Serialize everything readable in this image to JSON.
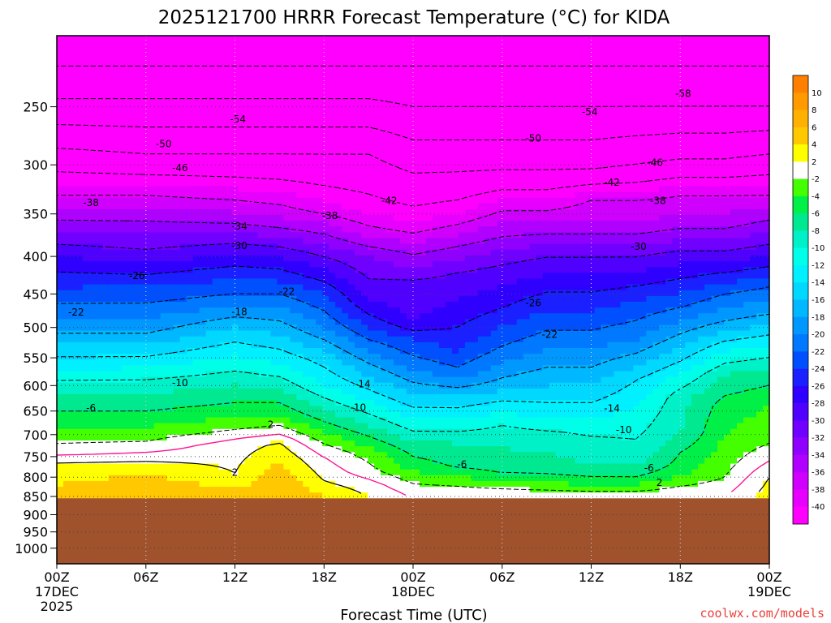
{
  "chart_data": {
    "type": "heatmap",
    "title": "2025121700 HRRR Forecast Temperature (°C) for KIDA",
    "xlabel": "Forecast Time (UTC)",
    "ylabel": "",
    "y_axis": {
      "scale": "log",
      "reversed": true,
      "range_hPa": [
        1050,
        200
      ],
      "ticks": [
        250,
        300,
        350,
        400,
        450,
        500,
        550,
        600,
        650,
        700,
        750,
        800,
        850,
        900,
        950,
        1000
      ]
    },
    "x_axis": {
      "range_hours": [
        0,
        48
      ],
      "ticks": [
        {
          "hour": 0,
          "lines": [
            "00Z",
            "17DEC",
            "2025"
          ]
        },
        {
          "hour": 6,
          "lines": [
            "06Z"
          ]
        },
        {
          "hour": 12,
          "lines": [
            "12Z"
          ]
        },
        {
          "hour": 18,
          "lines": [
            "18Z"
          ]
        },
        {
          "hour": 24,
          "lines": [
            "00Z",
            "18DEC"
          ]
        },
        {
          "hour": 30,
          "lines": [
            "06Z"
          ]
        },
        {
          "hour": 36,
          "lines": [
            "12Z"
          ]
        },
        {
          "hour": 42,
          "lines": [
            "18Z"
          ]
        },
        {
          "hour": 48,
          "lines": [
            "00Z",
            "19DEC"
          ]
        }
      ]
    },
    "grid": true,
    "surface_pressure_hPa": 855,
    "colorbar": {
      "ticks": [
        10,
        8,
        6,
        4,
        2,
        -2,
        -4,
        -6,
        -8,
        -10,
        -12,
        -14,
        -16,
        -18,
        -20,
        -22,
        -24,
        -26,
        -28,
        -30,
        -32,
        -34,
        -36,
        -38,
        -40
      ],
      "bins": [
        {
          "lo": 10,
          "hi": 12,
          "color": "#ff8000"
        },
        {
          "lo": 8,
          "hi": 10,
          "color": "#ff9a00"
        },
        {
          "lo": 6,
          "hi": 8,
          "color": "#ffb000"
        },
        {
          "lo": 4,
          "hi": 6,
          "color": "#ffc800"
        },
        {
          "lo": 2,
          "hi": 4,
          "color": "#ffff00"
        },
        {
          "lo": -2,
          "hi": 2,
          "color": "#ffffff"
        },
        {
          "lo": -4,
          "hi": -2,
          "color": "#44ff00"
        },
        {
          "lo": -6,
          "hi": -4,
          "color": "#00f048"
        },
        {
          "lo": -8,
          "hi": -6,
          "color": "#00e890"
        },
        {
          "lo": -10,
          "hi": -8,
          "color": "#00f0c8"
        },
        {
          "lo": -12,
          "hi": -10,
          "color": "#00ffe8"
        },
        {
          "lo": -14,
          "hi": -12,
          "color": "#00f0ff"
        },
        {
          "lo": -16,
          "hi": -14,
          "color": "#00d8ff"
        },
        {
          "lo": -18,
          "hi": -16,
          "color": "#00b8ff"
        },
        {
          "lo": -20,
          "hi": -18,
          "color": "#0098ff"
        },
        {
          "lo": -22,
          "hi": -20,
          "color": "#0078ff"
        },
        {
          "lo": -24,
          "hi": -22,
          "color": "#0050ff"
        },
        {
          "lo": -26,
          "hi": -24,
          "color": "#1a20ff"
        },
        {
          "lo": -28,
          "hi": -26,
          "color": "#3000ff"
        },
        {
          "lo": -30,
          "hi": -28,
          "color": "#5000ff"
        },
        {
          "lo": -32,
          "hi": -30,
          "color": "#7000ff"
        },
        {
          "lo": -34,
          "hi": -32,
          "color": "#9000ff"
        },
        {
          "lo": -36,
          "hi": -34,
          "color": "#b000ff"
        },
        {
          "lo": -38,
          "hi": -36,
          "color": "#d000ff"
        },
        {
          "lo": -40,
          "hi": -38,
          "color": "#e800ff"
        },
        {
          "lo": -60,
          "hi": -40,
          "color": "#ff00ff"
        }
      ]
    },
    "surface_color": "#a0522d",
    "profile_times_hours": [
      0,
      6,
      12,
      15,
      18,
      21,
      24,
      27,
      30,
      33,
      36,
      39,
      42,
      45,
      48
    ],
    "profiles": [
      [
        [
          850,
          5
        ],
        [
          760,
          2
        ],
        [
          740,
          -1
        ],
        [
          700,
          -3
        ],
        [
          650,
          -6
        ],
        [
          590,
          -10
        ],
        [
          500,
          -19
        ],
        [
          430,
          -25
        ],
        [
          400,
          -28
        ],
        [
          350,
          -35
        ],
        [
          330,
          -38
        ],
        [
          290,
          -45
        ],
        [
          250,
          -53
        ],
        [
          220,
          -58
        ]
      ],
      [
        [
          850,
          6
        ],
        [
          790,
          4
        ],
        [
          760,
          2
        ],
        [
          730,
          -1
        ],
        [
          700,
          -3
        ],
        [
          650,
          -6
        ],
        [
          600,
          -9
        ],
        [
          500,
          -19
        ],
        [
          440,
          -24
        ],
        [
          400,
          -29
        ],
        [
          350,
          -35
        ],
        [
          330,
          -38
        ],
        [
          290,
          -46
        ],
        [
          250,
          -53
        ],
        [
          220,
          -58
        ]
      ],
      [
        [
          850,
          5
        ],
        [
          790,
          2
        ],
        [
          720,
          1
        ],
        [
          690,
          -2
        ],
        [
          650,
          -5
        ],
        [
          600,
          -8
        ],
        [
          500,
          -16
        ],
        [
          460,
          -21
        ],
        [
          420,
          -25
        ],
        [
          390,
          -29
        ],
        [
          355,
          -35
        ],
        [
          335,
          -38
        ],
        [
          290,
          -46
        ],
        [
          250,
          -53
        ],
        [
          220,
          -58
        ]
      ],
      [
        [
          850,
          6
        ],
        [
          790,
          5
        ],
        [
          715,
          2
        ],
        [
          700,
          0
        ],
        [
          660,
          -4
        ],
        [
          620,
          -7
        ],
        [
          560,
          -12
        ],
        [
          500,
          -17
        ],
        [
          450,
          -22
        ],
        [
          400,
          -28
        ],
        [
          360,
          -35
        ],
        [
          340,
          -38
        ],
        [
          290,
          -46
        ],
        [
          250,
          -53
        ],
        [
          220,
          -58
        ]
      ],
      [
        [
          850,
          4
        ],
        [
          810,
          2
        ],
        [
          750,
          0
        ],
        [
          720,
          -2
        ],
        [
          660,
          -7
        ],
        [
          600,
          -12
        ],
        [
          550,
          -15
        ],
        [
          500,
          -20
        ],
        [
          450,
          -24
        ],
        [
          400,
          -30
        ],
        [
          360,
          -36
        ],
        [
          345,
          -39
        ],
        [
          290,
          -46
        ],
        [
          250,
          -53
        ],
        [
          220,
          -58
        ]
      ],
      [
        [
          850,
          2
        ],
        [
          820,
          1
        ],
        [
          790,
          -1
        ],
        [
          740,
          -3
        ],
        [
          680,
          -8
        ],
        [
          620,
          -13
        ],
        [
          570,
          -17
        ],
        [
          500,
          -24
        ],
        [
          460,
          -28
        ],
        [
          400,
          -32
        ],
        [
          370,
          -37
        ],
        [
          350,
          -40
        ],
        [
          290,
          -46
        ],
        [
          250,
          -53
        ],
        [
          220,
          -58
        ]
      ],
      [
        [
          850,
          0
        ],
        [
          800,
          -3
        ],
        [
          770,
          -5
        ],
        [
          730,
          -7
        ],
        [
          680,
          -11
        ],
        [
          630,
          -15
        ],
        [
          560,
          -21
        ],
        [
          520,
          -24
        ],
        [
          490,
          -28
        ],
        [
          430,
          -30
        ],
        [
          390,
          -35
        ],
        [
          360,
          -40
        ],
        [
          300,
          -47
        ],
        [
          250,
          -54
        ],
        [
          220,
          -58
        ]
      ],
      [
        [
          850,
          0
        ],
        [
          810,
          -3
        ],
        [
          780,
          -6
        ],
        [
          720,
          -8
        ],
        [
          680,
          -11
        ],
        [
          620,
          -16
        ],
        [
          580,
          -21
        ],
        [
          540,
          -24
        ],
        [
          480,
          -27
        ],
        [
          420,
          -30
        ],
        [
          380,
          -35
        ],
        [
          350,
          -40
        ],
        [
          300,
          -47
        ],
        [
          250,
          -54
        ],
        [
          220,
          -58
        ]
      ],
      [
        [
          850,
          0
        ],
        [
          820,
          -3
        ],
        [
          790,
          -6
        ],
        [
          730,
          -8
        ],
        [
          680,
          -10
        ],
        [
          640,
          -13
        ],
        [
          600,
          -17
        ],
        [
          530,
          -22
        ],
        [
          470,
          -26
        ],
        [
          410,
          -30
        ],
        [
          360,
          -36
        ],
        [
          340,
          -39
        ],
        [
          300,
          -47
        ],
        [
          250,
          -54
        ],
        [
          220,
          -58
        ]
      ],
      [
        [
          850,
          0
        ],
        [
          825,
          -3
        ],
        [
          795,
          -6
        ],
        [
          740,
          -8
        ],
        [
          690,
          -10
        ],
        [
          650,
          -13
        ],
        [
          600,
          -16
        ],
        [
          520,
          -21
        ],
        [
          460,
          -25
        ],
        [
          400,
          -30
        ],
        [
          360,
          -36
        ],
        [
          340,
          -39
        ],
        [
          300,
          -47
        ],
        [
          250,
          -54
        ],
        [
          220,
          -58
        ]
      ],
      [
        [
          850,
          0
        ],
        [
          830,
          -3
        ],
        [
          800,
          -6
        ],
        [
          750,
          -9
        ],
        [
          700,
          -10
        ],
        [
          650,
          -13
        ],
        [
          600,
          -16
        ],
        [
          520,
          -21
        ],
        [
          460,
          -25
        ],
        [
          400,
          -30
        ],
        [
          360,
          -36
        ],
        [
          335,
          -38
        ],
        [
          300,
          -47
        ],
        [
          250,
          -54
        ],
        [
          220,
          -58
        ]
      ],
      [
        [
          850,
          0
        ],
        [
          830,
          -3
        ],
        [
          800,
          -6
        ],
        [
          760,
          -9
        ],
        [
          710,
          -10
        ],
        [
          640,
          -12
        ],
        [
          590,
          -14
        ],
        [
          520,
          -20
        ],
        [
          460,
          -24
        ],
        [
          400,
          -30
        ],
        [
          360,
          -36
        ],
        [
          335,
          -38
        ],
        [
          300,
          -46
        ],
        [
          250,
          -54
        ],
        [
          220,
          -58
        ]
      ],
      [
        [
          850,
          0
        ],
        [
          810,
          -3
        ],
        [
          780,
          -5
        ],
        [
          740,
          -6
        ],
        [
          700,
          -8
        ],
        [
          620,
          -9
        ],
        [
          580,
          -12
        ],
        [
          510,
          -18
        ],
        [
          460,
          -23
        ],
        [
          400,
          -29
        ],
        [
          360,
          -35
        ],
        [
          330,
          -38
        ],
        [
          295,
          -46
        ],
        [
          250,
          -54
        ],
        [
          220,
          -58
        ]
      ],
      [
        [
          850,
          0
        ],
        [
          800,
          -2
        ],
        [
          760,
          -3
        ],
        [
          700,
          -4
        ],
        [
          640,
          -5
        ],
        [
          580,
          -8
        ],
        [
          530,
          -13
        ],
        [
          490,
          -18
        ],
        [
          450,
          -22
        ],
        [
          400,
          -29
        ],
        [
          360,
          -35
        ],
        [
          330,
          -38
        ],
        [
          295,
          -46
        ],
        [
          250,
          -54
        ],
        [
          220,
          -58
        ]
      ],
      [
        [
          850,
          3
        ],
        [
          800,
          2
        ],
        [
          760,
          0
        ],
        [
          720,
          -2
        ],
        [
          690,
          -3
        ],
        [
          640,
          -4
        ],
        [
          580,
          -7
        ],
        [
          520,
          -13
        ],
        [
          480,
          -18
        ],
        [
          440,
          -22
        ],
        [
          400,
          -28
        ],
        [
          350,
          -35
        ],
        [
          330,
          -38
        ],
        [
          290,
          -46
        ],
        [
          250,
          -54
        ],
        [
          220,
          -58
        ]
      ]
    ],
    "contour_labels": [
      {
        "hour": 12.2,
        "p": 260,
        "text": "-54"
      },
      {
        "hour": 35.9,
        "p": 254,
        "text": "-54"
      },
      {
        "hour": 42.2,
        "p": 240,
        "text": "-58"
      },
      {
        "hour": 7.2,
        "p": 281,
        "text": "-50"
      },
      {
        "hour": 32.1,
        "p": 276,
        "text": "-50"
      },
      {
        "hour": 8.3,
        "p": 303,
        "text": "-46"
      },
      {
        "hour": 40.3,
        "p": 298,
        "text": "-46"
      },
      {
        "hour": 37.4,
        "p": 317,
        "text": "-42"
      },
      {
        "hour": 22.4,
        "p": 336,
        "text": "-42"
      },
      {
        "hour": 2.3,
        "p": 338,
        "text": "-38"
      },
      {
        "hour": 18.4,
        "p": 352,
        "text": "-38"
      },
      {
        "hour": 40.5,
        "p": 336,
        "text": "-38"
      },
      {
        "hour": 12.3,
        "p": 364,
        "text": "-34"
      },
      {
        "hour": 12.3,
        "p": 387,
        "text": "-30"
      },
      {
        "hour": 39.2,
        "p": 388,
        "text": "-30"
      },
      {
        "hour": 5.4,
        "p": 425,
        "text": "-26"
      },
      {
        "hour": 32.1,
        "p": 463,
        "text": "-26"
      },
      {
        "hour": 1.3,
        "p": 477,
        "text": "-22"
      },
      {
        "hour": 15.5,
        "p": 447,
        "text": "-22"
      },
      {
        "hour": 33.2,
        "p": 511,
        "text": "-22"
      },
      {
        "hour": 12.3,
        "p": 476,
        "text": "-18"
      },
      {
        "hour": 8.3,
        "p": 595,
        "text": "-10"
      },
      {
        "hour": 20.6,
        "p": 597,
        "text": "-14"
      },
      {
        "hour": 20.3,
        "p": 643,
        "text": "-10"
      },
      {
        "hour": 37.4,
        "p": 645,
        "text": "-14"
      },
      {
        "hour": 38.2,
        "p": 690,
        "text": "-10"
      },
      {
        "hour": 2.3,
        "p": 644,
        "text": "-6"
      },
      {
        "hour": 27.3,
        "p": 769,
        "text": "-6"
      },
      {
        "hour": 39.9,
        "p": 777,
        "text": "-6"
      },
      {
        "hour": 14.4,
        "p": 678,
        "text": "2"
      },
      {
        "hour": 12.0,
        "p": 788,
        "text": "2"
      },
      {
        "hour": 40.6,
        "p": 814,
        "text": "2"
      }
    ]
  },
  "credit": "coolwx.com/models"
}
